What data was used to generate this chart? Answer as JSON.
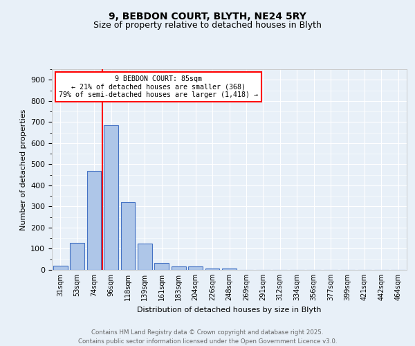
{
  "title1": "9, BEBDON COURT, BLYTH, NE24 5RY",
  "title2": "Size of property relative to detached houses in Blyth",
  "xlabel": "Distribution of detached houses by size in Blyth",
  "ylabel": "Number of detached properties",
  "bar_values": [
    20,
    128,
    470,
    685,
    320,
    125,
    33,
    18,
    15,
    8,
    8,
    0,
    0,
    0,
    0,
    0,
    0,
    0,
    0,
    0,
    0
  ],
  "bar_labels": [
    "31sqm",
    "53sqm",
    "74sqm",
    "96sqm",
    "118sqm",
    "139sqm",
    "161sqm",
    "183sqm",
    "204sqm",
    "226sqm",
    "248sqm",
    "269sqm",
    "291sqm",
    "312sqm",
    "334sqm",
    "356sqm",
    "377sqm",
    "399sqm",
    "421sqm",
    "442sqm",
    "464sqm"
  ],
  "bar_color": "#aec6e8",
  "bar_edge_color": "#4472c4",
  "background_color": "#e8f0f8",
  "annotation_text": "9 BEBDON COURT: 85sqm\n← 21% of detached houses are smaller (368)\n79% of semi-detached houses are larger (1,418) →",
  "box_color": "#cc0000",
  "ylim": [
    0,
    950
  ],
  "yticks": [
    0,
    100,
    200,
    300,
    400,
    500,
    600,
    700,
    800,
    900
  ],
  "footer_line1": "Contains HM Land Registry data © Crown copyright and database right 2025.",
  "footer_line2": "Contains public sector information licensed under the Open Government Licence v3.0.",
  "grid_color": "#ffffff",
  "title_fontsize": 10,
  "subtitle_fontsize": 9,
  "red_line_x": 85
}
